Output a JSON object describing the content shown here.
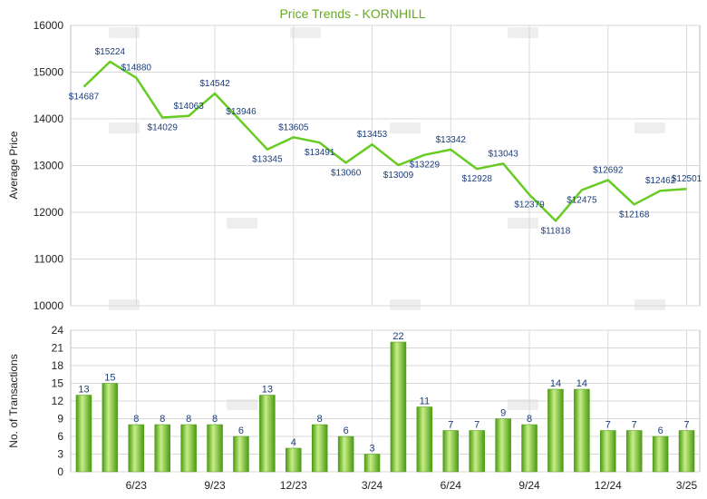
{
  "title": "Price Trends - KORNHILL",
  "colors": {
    "title": "#66aa22",
    "line": "#66cc22",
    "bar_light": "#c8ee88",
    "bar_mid": "#77c22a",
    "bar_dark": "#4a9a12",
    "grid": "#d8d8d8",
    "label": "#1a3d7a",
    "watermark": "#eeeeee"
  },
  "chart_data": [
    {
      "type": "line",
      "ylabel": "Average Price",
      "xlabel": "",
      "ylim": [
        10000,
        16000
      ],
      "yticks": [
        10000,
        11000,
        12000,
        13000,
        14000,
        15000,
        16000
      ],
      "grid": true,
      "series": [
        {
          "values": [
            14687,
            15224,
            14880,
            14029,
            14063,
            14542,
            13946,
            13345,
            13605,
            13491,
            13060,
            13453,
            13009,
            13229,
            13342,
            12928,
            13043,
            12379,
            11818,
            12475,
            12692,
            12168,
            12462,
            12501
          ],
          "labels": [
            "$14687",
            "$15224",
            "$14880",
            "$14029",
            "$14063",
            "$14542",
            "$13946",
            "$13345",
            "$13605",
            "$13491",
            "$13060",
            "$13453",
            "$13009",
            "$13229",
            "$13342",
            "$12928",
            "$13043",
            "$12379",
            "$11818",
            "$12475",
            "$12692",
            "$12168",
            "$12462",
            "$12501"
          ]
        }
      ]
    },
    {
      "type": "bar",
      "ylabel": "No. of Transactions",
      "xlabel": "",
      "ylim": [
        0,
        24
      ],
      "yticks": [
        0,
        3,
        6,
        9,
        12,
        15,
        18,
        21,
        24
      ],
      "grid": true,
      "values": [
        13,
        15,
        8,
        8,
        8,
        8,
        6,
        13,
        4,
        8,
        6,
        3,
        22,
        11,
        7,
        7,
        9,
        8,
        14,
        14,
        7,
        7,
        6,
        7
      ],
      "xtick_labels": [
        {
          "index": 2,
          "label": "6/23"
        },
        {
          "index": 5,
          "label": "9/23"
        },
        {
          "index": 8,
          "label": "12/23"
        },
        {
          "index": 11,
          "label": "3/24"
        },
        {
          "index": 14,
          "label": "6/24"
        },
        {
          "index": 17,
          "label": "9/24"
        },
        {
          "index": 20,
          "label": "12/24"
        },
        {
          "index": 23,
          "label": "3/25"
        }
      ]
    }
  ]
}
